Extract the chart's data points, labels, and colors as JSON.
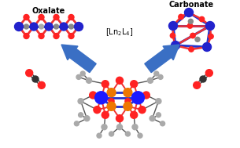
{
  "background_color": "#ffffff",
  "arrow_color": "#3a6fc4",
  "metal_color_blue": "#2222cc",
  "metal_color_dark": "#1a1aff",
  "oxygen_color": "#ff2222",
  "carbon_color": "#888888",
  "bond_color_red": "#ee3333",
  "bond_color_blue": "#2233cc",
  "bond_color_pink": "#dd4477",
  "label_oxalate": "Oxalate",
  "label_carbonate": "Carbonate",
  "label_center": "[Ln$_2$L$_4$]",
  "figsize": [
    3.05,
    1.89
  ],
  "dpi": 100,
  "co2_bond_color": "#333333",
  "gray_atom": "#aaaaaa",
  "gray_dark": "#555555",
  "orange_color": "#ee7700"
}
